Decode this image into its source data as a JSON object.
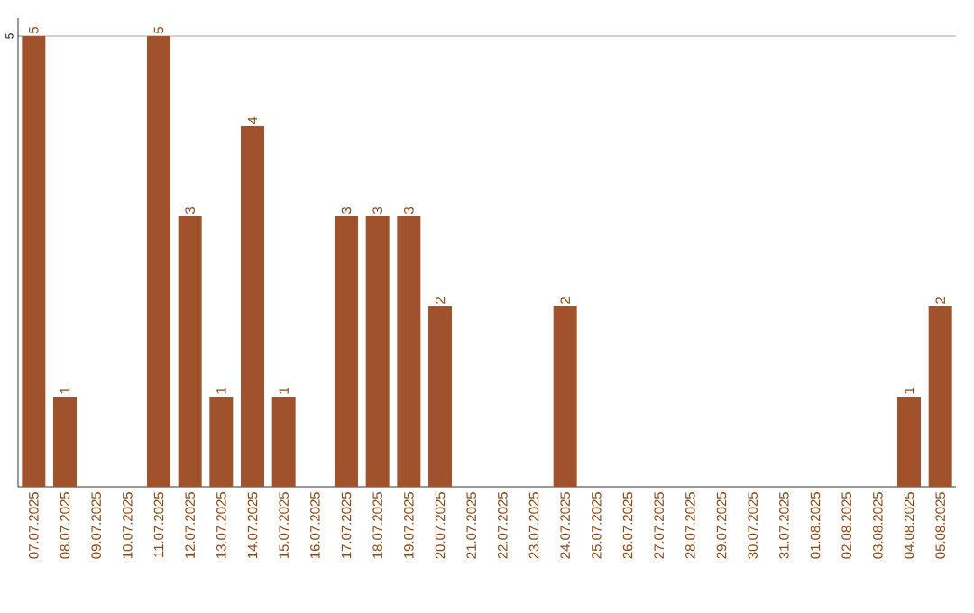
{
  "chart_data": {
    "type": "bar",
    "categories": [
      "07.07.2025",
      "08.07.2025",
      "09.07.2025",
      "10.07.2025",
      "11.07.2025",
      "12.07.2025",
      "13.07.2025",
      "14.07.2025",
      "15.07.2025",
      "16.07.2025",
      "17.07.2025",
      "18.07.2025",
      "19.07.2025",
      "20.07.2025",
      "21.07.2025",
      "22.07.2025",
      "23.07.2025",
      "24.07.2025",
      "25.07.2025",
      "26.07.2025",
      "27.07.2025",
      "28.07.2025",
      "29.07.2025",
      "30.07.2025",
      "31.07.2025",
      "01.08.2025",
      "02.08.2025",
      "03.08.2025",
      "04.08.2025",
      "05.08.2025"
    ],
    "values": [
      5,
      1,
      0,
      0,
      5,
      3,
      1,
      4,
      1,
      0,
      3,
      3,
      3,
      2,
      0,
      0,
      0,
      2,
      0,
      0,
      0,
      0,
      0,
      0,
      0,
      0,
      0,
      0,
      1,
      2
    ],
    "value_labels": [
      "5",
      "1",
      null,
      null,
      "5",
      "3",
      "1",
      "4",
      "1",
      null,
      "3",
      "3",
      "3",
      "2",
      null,
      null,
      null,
      "2",
      null,
      null,
      null,
      null,
      null,
      null,
      null,
      null,
      null,
      null,
      "1",
      "2"
    ],
    "color": "#a0522d",
    "ylim": [
      0,
      5.2
    ],
    "yticks": [
      5
    ],
    "grid": "y"
  }
}
